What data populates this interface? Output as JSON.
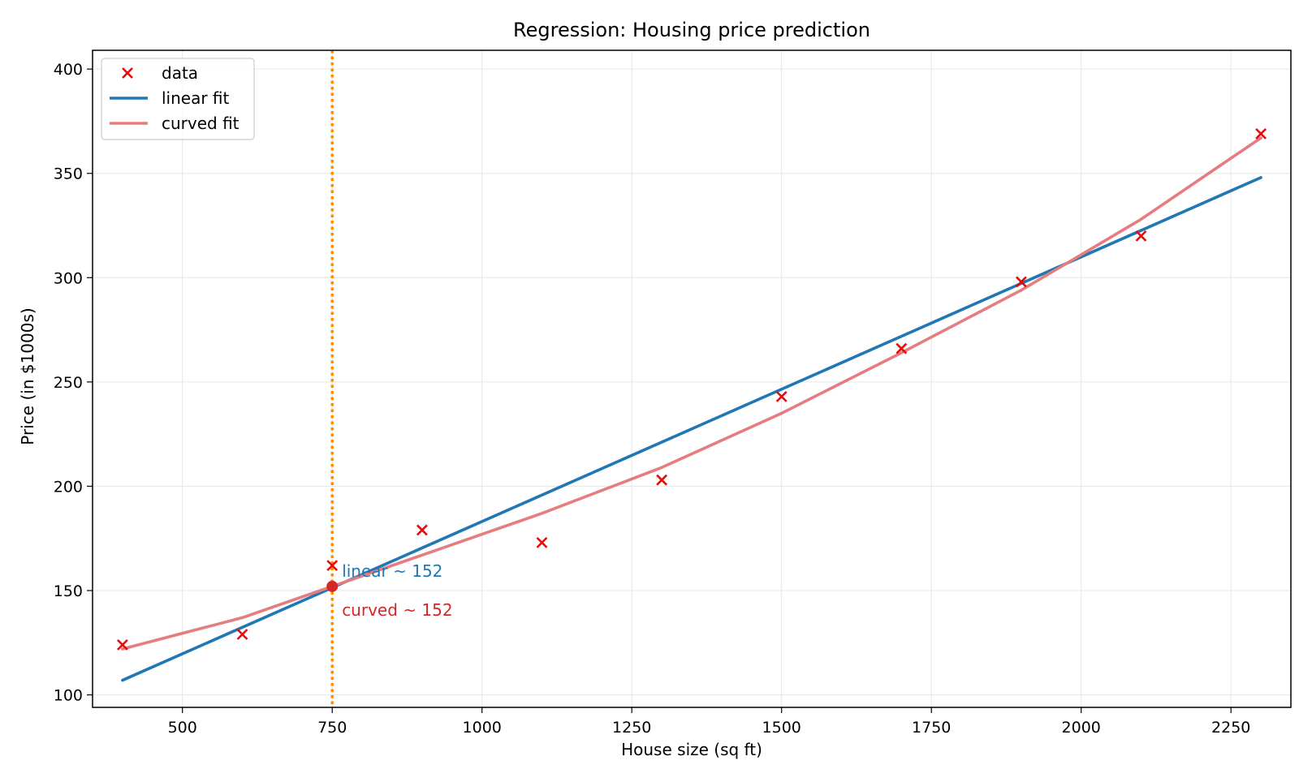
{
  "chart_data": {
    "type": "scatter",
    "title": "Regression: Housing price prediction",
    "xlabel": "House size (sq ft)",
    "ylabel": "Price (in $1000s)",
    "xlim": [
      350,
      2350
    ],
    "ylim": [
      94,
      409
    ],
    "xticks": [
      500,
      750,
      1000,
      1250,
      1500,
      1750,
      2000,
      2250
    ],
    "yticks": [
      100,
      150,
      200,
      250,
      300,
      350,
      400
    ],
    "grid": true,
    "legend_position": "top-left",
    "series": [
      {
        "name": "data",
        "kind": "scatter",
        "marker": "x",
        "color": "#e8090b",
        "x": [
          400,
          600,
          750,
          900,
          1100,
          1300,
          1500,
          1700,
          1900,
          2100,
          2300
        ],
        "y": [
          124,
          129,
          162,
          179,
          173,
          203,
          243,
          266,
          298,
          320,
          369
        ]
      },
      {
        "name": "linear fit",
        "kind": "line",
        "color": "#1f77b4",
        "x": [
          400,
          2300
        ],
        "y": [
          107,
          348
        ]
      },
      {
        "name": "curved fit",
        "kind": "line",
        "color": "#e57d80",
        "x": [
          400,
          600,
          750,
          900,
          1100,
          1300,
          1500,
          1700,
          1900,
          2100,
          2300
        ],
        "y": [
          122,
          137,
          152,
          167,
          187,
          209,
          235,
          264,
          294,
          328,
          367
        ]
      }
    ],
    "vline": {
      "x": 750,
      "color": "#ff8c00",
      "style": "dotted"
    },
    "highlight_point": {
      "x": 750,
      "y": 152,
      "color": "#d62728"
    },
    "annotations": [
      {
        "text": "linear ~ 152",
        "x": 750,
        "y": 152,
        "color": "#1f77b4"
      },
      {
        "text": "curved ~ 152",
        "x": 750,
        "y": 152,
        "color": "#d62728"
      }
    ]
  }
}
